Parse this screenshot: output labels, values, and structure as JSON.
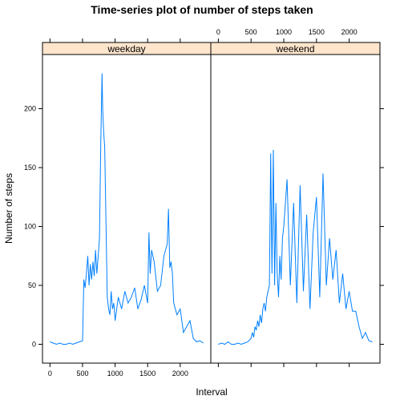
{
  "chart_data": {
    "type": "line",
    "title": "Time-series plot of number of steps taken",
    "xlabel": "Interval",
    "ylabel": "Number of steps",
    "xlim": [
      -115,
      2470
    ],
    "ylim": [
      -16,
      246
    ],
    "x_ticks": [
      0,
      500,
      1000,
      1500,
      2000
    ],
    "y_ticks": [
      0,
      50,
      100,
      150,
      200
    ],
    "x_tick_labels": [
      "0",
      "500",
      "1000",
      "1500",
      "2000"
    ],
    "y_tick_labels": [
      "0",
      "50",
      "100",
      "150",
      "200"
    ],
    "line_color": "#0080ff",
    "strip_color": "#ffe5cc",
    "series": [
      {
        "name": "weekday",
        "x": [
          0,
          50,
          100,
          150,
          200,
          250,
          300,
          350,
          400,
          450,
          500,
          520,
          540,
          560,
          580,
          600,
          620,
          640,
          660,
          680,
          700,
          720,
          740,
          760,
          780,
          800,
          810,
          820,
          830,
          840,
          860,
          880,
          900,
          920,
          940,
          960,
          980,
          1000,
          1050,
          1100,
          1150,
          1200,
          1250,
          1300,
          1350,
          1400,
          1450,
          1500,
          1520,
          1540,
          1560,
          1600,
          1650,
          1700,
          1750,
          1800,
          1820,
          1840,
          1860,
          1880,
          1900,
          1950,
          2000,
          2050,
          2100,
          2150,
          2200,
          2250,
          2300,
          2355
        ],
        "y": [
          2,
          1,
          0,
          1,
          0,
          0,
          1,
          0,
          1,
          2,
          3,
          55,
          48,
          60,
          75,
          50,
          68,
          55,
          70,
          58,
          80,
          60,
          75,
          90,
          170,
          230,
          200,
          185,
          175,
          168,
          104,
          40,
          30,
          25,
          45,
          30,
          35,
          20,
          40,
          30,
          45,
          35,
          40,
          48,
          30,
          38,
          50,
          35,
          95,
          60,
          80,
          70,
          45,
          50,
          75,
          85,
          115,
          65,
          70,
          60,
          35,
          25,
          30,
          10,
          15,
          20,
          5,
          2,
          3,
          1
        ]
      },
      {
        "name": "weekend",
        "x": [
          0,
          50,
          100,
          150,
          200,
          250,
          300,
          350,
          400,
          450,
          500,
          520,
          540,
          560,
          580,
          600,
          620,
          640,
          660,
          680,
          700,
          720,
          740,
          760,
          780,
          800,
          820,
          840,
          860,
          880,
          900,
          920,
          940,
          960,
          980,
          1000,
          1050,
          1100,
          1150,
          1200,
          1250,
          1300,
          1350,
          1400,
          1450,
          1500,
          1550,
          1600,
          1650,
          1700,
          1750,
          1800,
          1850,
          1900,
          1950,
          2000,
          2050,
          2100,
          2150,
          2200,
          2250,
          2300,
          2355
        ],
        "y": [
          0,
          1,
          0,
          2,
          0,
          0,
          1,
          0,
          1,
          2,
          5,
          10,
          6,
          15,
          12,
          20,
          15,
          25,
          18,
          30,
          35,
          28,
          40,
          45,
          50,
          162,
          60,
          165,
          50,
          120,
          60,
          40,
          75,
          55,
          90,
          100,
          140,
          50,
          120,
          35,
          135,
          45,
          110,
          30,
          95,
          125,
          40,
          145,
          50,
          90,
          55,
          80,
          35,
          60,
          30,
          45,
          28,
          28,
          15,
          5,
          10,
          3,
          2
        ]
      }
    ]
  }
}
